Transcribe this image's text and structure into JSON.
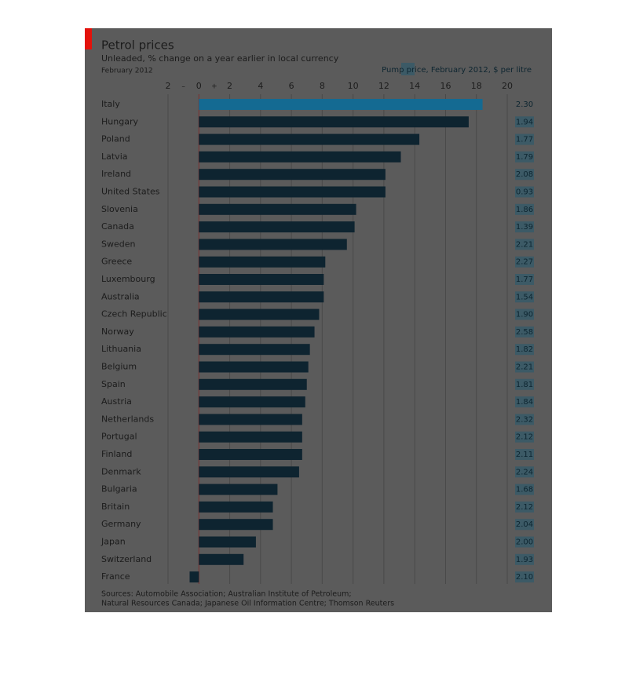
{
  "chart_data": {
    "type": "bar",
    "orientation": "horizontal",
    "title": "Petrol prices",
    "subtitle": "Unleaded, % change on a year earlier in local currency",
    "date": "February 2012",
    "categories": [
      "Italy",
      "Hungary",
      "Poland",
      "Latvia",
      "Ireland",
      "United States",
      "Slovenia",
      "Canada",
      "Sweden",
      "Greece",
      "Luxembourg",
      "Australia",
      "Czech Republic",
      "Norway",
      "Lithuania",
      "Belgium",
      "Spain",
      "Austria",
      "Netherlands",
      "Portugal",
      "Finland",
      "Denmark",
      "Bulgaria",
      "Britain",
      "Germany",
      "Japan",
      "Switzerland",
      "France"
    ],
    "values": [
      18.4,
      17.5,
      14.3,
      13.1,
      12.1,
      12.1,
      10.2,
      10.1,
      9.6,
      8.2,
      8.1,
      8.1,
      7.8,
      7.5,
      7.2,
      7.1,
      7.0,
      6.9,
      6.7,
      6.7,
      6.7,
      6.5,
      5.1,
      4.8,
      4.8,
      3.7,
      2.9,
      -0.6
    ],
    "color": "#0e2430",
    "highlight_index": 0,
    "highlight_color": "#146a92",
    "xlim": [
      -2,
      20
    ],
    "xticks": [
      {
        "value": -2,
        "label": "2"
      },
      0,
      2,
      4,
      6,
      8,
      10,
      12,
      14,
      16,
      18,
      20
    ],
    "sign_labels": [
      {
        "value": -1,
        "label": "–"
      },
      {
        "value": 1,
        "label": "+"
      }
    ],
    "grid": true,
    "pump_price_label": "Pump price, February 2012, $ per litre",
    "pump_prices": [
      "2.30",
      "1.94",
      "1.77",
      "1.79",
      "2.08",
      "0.93",
      "1.86",
      "1.39",
      "2.21",
      "2.27",
      "1.77",
      "1.54",
      "1.90",
      "2.58",
      "1.82",
      "2.21",
      "1.81",
      "1.84",
      "2.32",
      "2.12",
      "2.11",
      "2.24",
      "1.68",
      "2.12",
      "2.04",
      "2.00",
      "1.93",
      "2.10"
    ],
    "source": [
      "Sources: Automobile Association; Australian Institute of Petroleum;",
      "Natural Resources Canada; Japanese Oil Information Centre; Thomson Reuters"
    ]
  }
}
